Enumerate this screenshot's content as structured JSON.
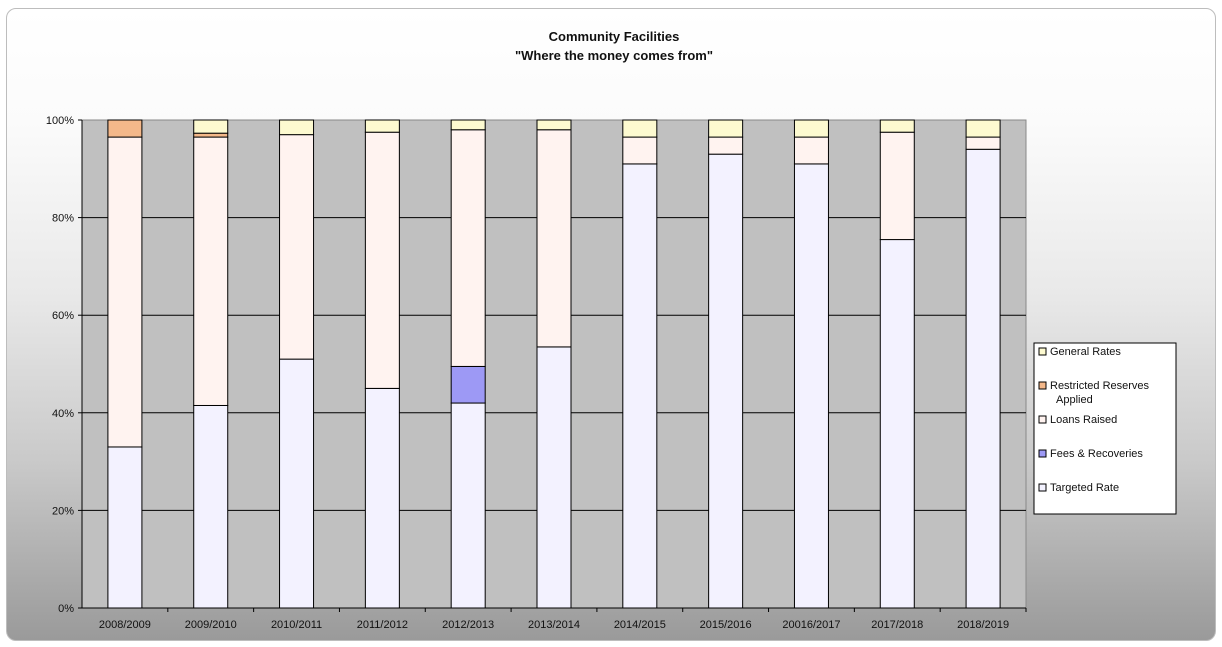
{
  "chart_data": {
    "type": "bar",
    "stacked": true,
    "normalized": true,
    "title": "Community Facilities",
    "subtitle": "\"Where the money comes from\"",
    "xlabel": "",
    "ylabel": "",
    "ylim": [
      0,
      100
    ],
    "yticks": [
      "0%",
      "20%",
      "40%",
      "60%",
      "80%",
      "100%"
    ],
    "categories": [
      "2008/2009",
      "2009/2010",
      "2010/2011",
      "2011/2012",
      "2012/2013",
      "2013/2014",
      "2014/2015",
      "2015/2016",
      "20016/2017",
      "2017/2018",
      "2018/2019"
    ],
    "series": [
      {
        "name": "Targeted Rate",
        "color": "#f3f2ff",
        "values": [
          33,
          41.5,
          51,
          45,
          42,
          53.5,
          91,
          93,
          91,
          75.5,
          94
        ]
      },
      {
        "name": "Fees & Recoveries",
        "color": "#9d99f5",
        "values": [
          0,
          0,
          0,
          0,
          7.5,
          0,
          0,
          0,
          0,
          0,
          0
        ]
      },
      {
        "name": "Loans Raised",
        "color": "#fff3f0",
        "values": [
          63.5,
          55,
          46,
          52.5,
          48.5,
          44.5,
          5.5,
          3.5,
          5.5,
          22,
          2.5
        ]
      },
      {
        "name": "Restricted Reserves Applied",
        "color": "#f4b88a",
        "values": [
          3.5,
          0.8,
          0,
          0,
          0,
          0,
          0,
          0,
          0,
          0,
          0
        ]
      },
      {
        "name": "General Rates",
        "color": "#fdfad0",
        "values": [
          0,
          2.7,
          3,
          2.5,
          2,
          2,
          3.5,
          3.5,
          3.5,
          2.5,
          3.5
        ]
      }
    ],
    "legend": {
      "placement": "right",
      "entries": [
        "General Rates",
        "Restricted Reserves Applied",
        "Loans Raised",
        "Fees & Recoveries",
        "Targeted Rate"
      ]
    },
    "grid": true,
    "plot_background": "#c0c0c0"
  }
}
